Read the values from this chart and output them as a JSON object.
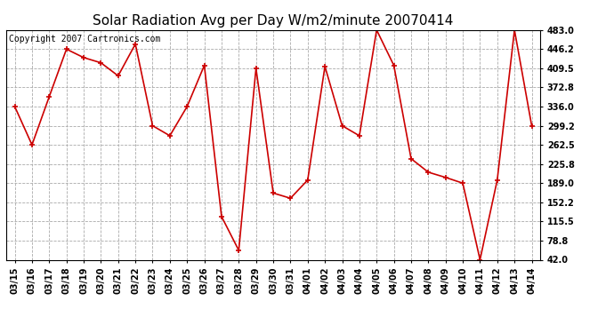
{
  "title": "Solar Radiation Avg per Day W/m2/minute 20070414",
  "copyright": "Copyright 2007 Cartronics.com",
  "labels": [
    "03/15",
    "03/16",
    "03/17",
    "03/18",
    "03/19",
    "03/20",
    "03/21",
    "03/22",
    "03/23",
    "03/24",
    "03/25",
    "03/26",
    "03/27",
    "03/28",
    "03/29",
    "03/30",
    "03/31",
    "04/01",
    "04/02",
    "04/03",
    "04/04",
    "04/05",
    "04/06",
    "04/07",
    "04/08",
    "04/09",
    "04/10",
    "04/11",
    "04/12",
    "04/13",
    "04/14"
  ],
  "values": [
    336.0,
    262.5,
    355.0,
    446.2,
    430.0,
    420.0,
    395.0,
    456.0,
    299.2,
    280.0,
    336.0,
    415.0,
    125.0,
    60.0,
    409.5,
    170.0,
    160.0,
    195.0,
    413.0,
    299.2,
    280.0,
    483.0,
    415.0,
    236.0,
    210.0,
    200.0,
    189.0,
    42.0,
    195.0,
    483.0,
    299.2
  ],
  "yticks": [
    42.0,
    78.8,
    115.5,
    152.2,
    189.0,
    225.8,
    262.5,
    299.2,
    336.0,
    372.8,
    409.5,
    446.2,
    483.0
  ],
  "line_color": "#cc0000",
  "marker_color": "#cc0000",
  "bg_color": "#ffffff",
  "plot_bg": "#ffffff",
  "grid_color": "#aaaaaa",
  "title_fontsize": 11,
  "copyright_fontsize": 7,
  "tick_fontsize": 7,
  "ytick_fontsize": 7
}
